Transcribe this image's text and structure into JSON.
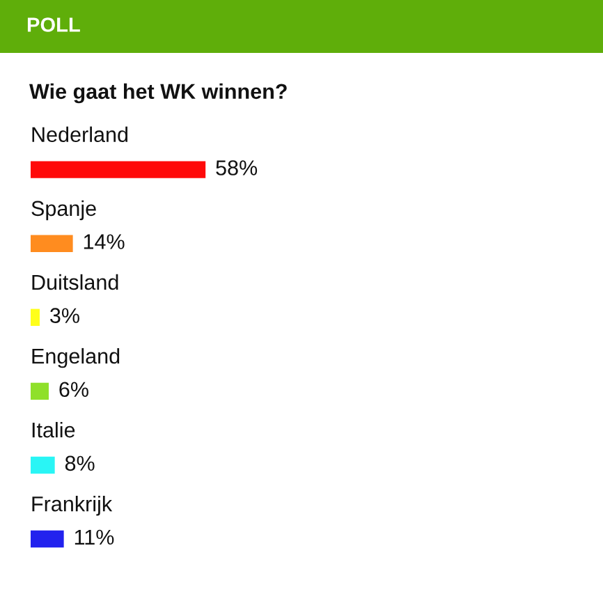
{
  "chart_data": {
    "type": "bar",
    "orientation": "horizontal",
    "title": "POLL",
    "subtitle": "Wie gaat het WK winnen?",
    "categories": [
      "Nederland",
      "Spanje",
      "Duitsland",
      "Engeland",
      "Italie",
      "Frankrijk"
    ],
    "values": [
      58,
      14,
      3,
      6,
      8,
      11
    ],
    "colors": [
      "#ff0a0a",
      "#ff8c1f",
      "#ffff1a",
      "#8fe02a",
      "#29f5f5",
      "#2222ee"
    ],
    "value_labels": [
      "58%",
      "14%",
      "3%",
      "6%",
      "8%",
      "11%"
    ],
    "tick_labels": false
  }
}
